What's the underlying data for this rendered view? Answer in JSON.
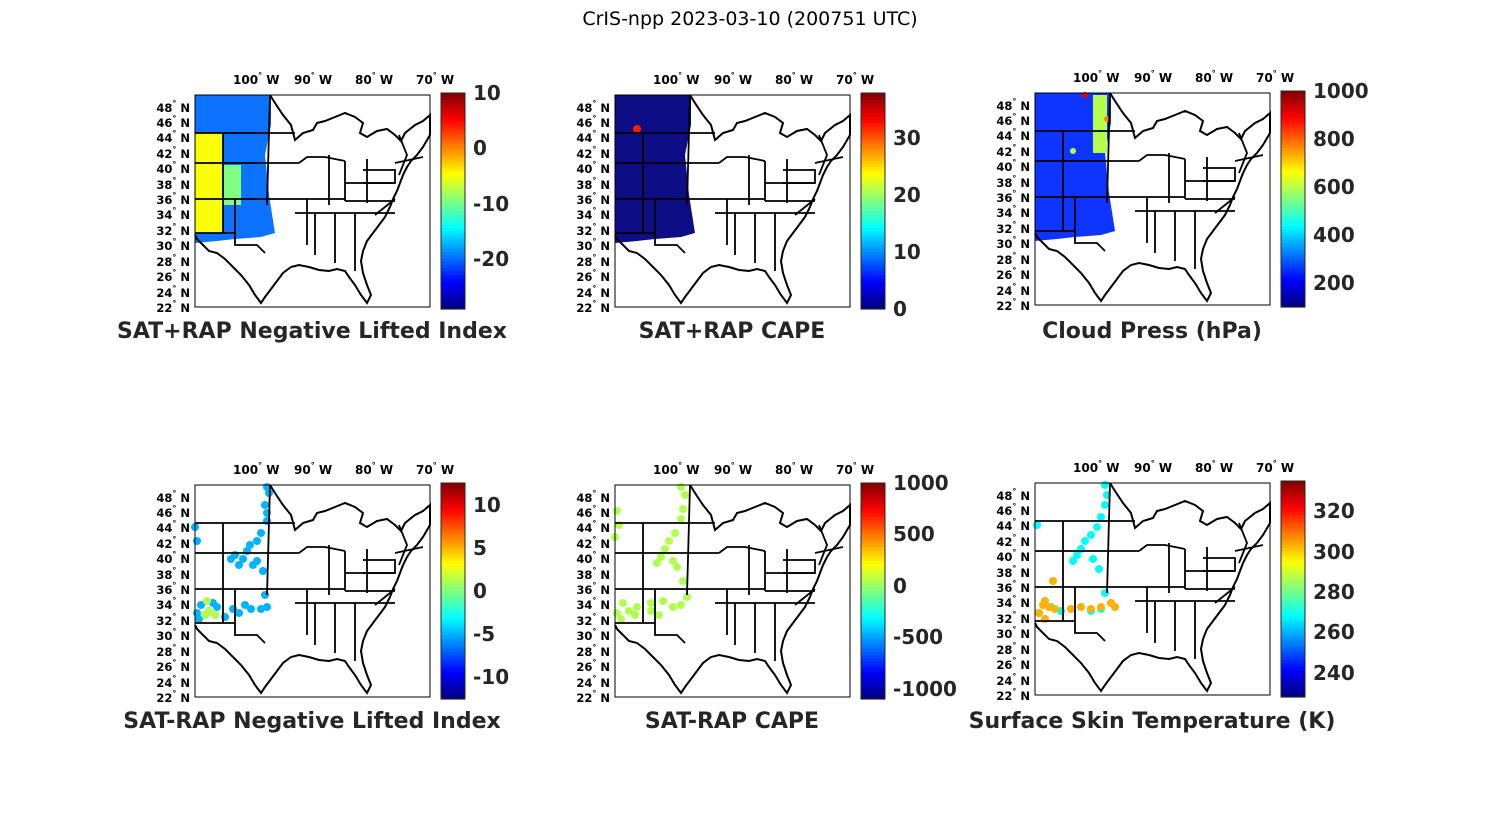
{
  "figure_title": "CrIS-npp 2023-03-10 (200751 UTC)",
  "lon_ticks": [
    "100",
    "90",
    "80",
    "70"
  ],
  "lon_suffix": "W",
  "lat_ticks": [
    "48",
    "46",
    "44",
    "42",
    "40",
    "38",
    "36",
    "34",
    "32",
    "30",
    "28",
    "26",
    "24",
    "22"
  ],
  "lat_suffix": "N",
  "degree_symbol": "°",
  "colormap": "jet",
  "panels": [
    {
      "id": "sat-rap-plus-neg-li",
      "title": "SAT+RAP Negative Lifted Index",
      "colorbar": {
        "min": -29,
        "max": 10,
        "ticks": [
          "10",
          "0",
          "-10",
          "-20"
        ],
        "tick_values": [
          10,
          0,
          -10,
          -20
        ]
      },
      "field": "swath",
      "swath_value": -20
    },
    {
      "id": "sat-rap-plus-cape",
      "title": "SAT+RAP CAPE",
      "colorbar": {
        "min": 0,
        "max": 38,
        "ticks": [
          "30",
          "20",
          "10",
          "0"
        ],
        "tick_values": [
          30,
          20,
          10,
          0
        ]
      },
      "field": "swath",
      "swath_value": 0
    },
    {
      "id": "cloud-press",
      "title": "Cloud Press (hPa)",
      "colorbar": {
        "min": 100,
        "max": 1000,
        "ticks": [
          "1000",
          "800",
          "600",
          "400",
          "200"
        ],
        "tick_values": [
          1000,
          800,
          600,
          400,
          200
        ]
      },
      "field": "swath",
      "swath_value": 250
    },
    {
      "id": "sat-minus-rap-neg-li",
      "title": "SAT-RAP Negative Lifted Index",
      "colorbar": {
        "min": -12.5,
        "max": 12.5,
        "ticks": [
          "10",
          "5",
          "0",
          "-5",
          "-10"
        ],
        "tick_values": [
          10,
          5,
          0,
          -5,
          -10
        ]
      },
      "field": "points",
      "point_value": -5
    },
    {
      "id": "sat-minus-rap-cape",
      "title": "SAT-RAP CAPE",
      "colorbar": {
        "min": -1100,
        "max": 1000,
        "ticks": [
          "1000",
          "500",
          "0",
          "-500",
          "-1000"
        ],
        "tick_values": [
          1000,
          500,
          0,
          -500,
          -1000
        ]
      },
      "field": "points",
      "point_value": 50
    },
    {
      "id": "surface-skin-temp",
      "title": "Surface Skin Temperature (K)",
      "colorbar": {
        "min": 228,
        "max": 335,
        "ticks": [
          "320",
          "300",
          "280",
          "260",
          "240"
        ],
        "tick_values": [
          320,
          300,
          280,
          260,
          240
        ]
      },
      "field": "points",
      "point_value": 268
    }
  ]
}
